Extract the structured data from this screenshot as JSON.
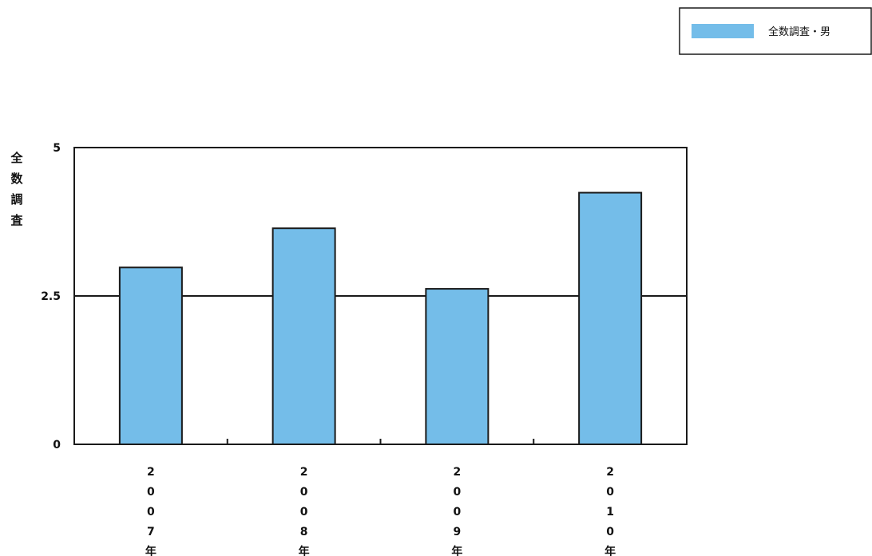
{
  "chart_data": {
    "type": "bar",
    "categories": [
      "2007年",
      "2008年",
      "2009年",
      "2010年"
    ],
    "series": [
      {
        "name": "全数調査・男",
        "values": [
          2.98,
          3.64,
          2.62,
          4.24
        ]
      }
    ],
    "ylabel": "全数調査",
    "xlabel": "",
    "ylim": [
      0,
      5
    ],
    "yticks": [
      "0",
      "2.5",
      "5"
    ],
    "gridlines": [
      2.5
    ],
    "legend_position": "top-right",
    "colors": {
      "bar": "#74bde9",
      "frame": "#1a1a1a"
    }
  }
}
